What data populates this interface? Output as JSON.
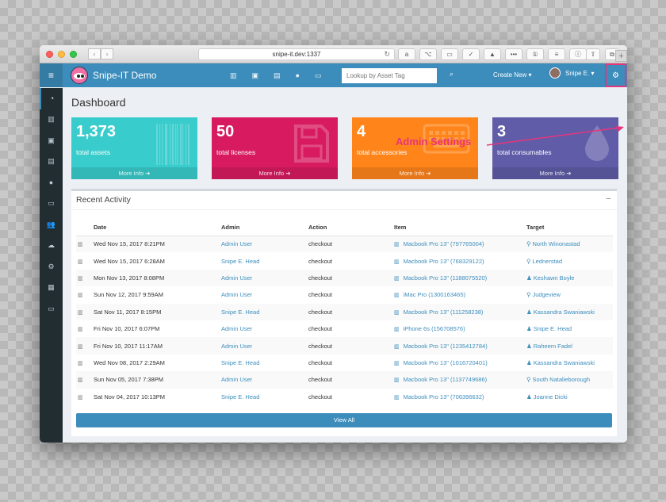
{
  "browser": {
    "url": "snipe-it.dev:1337",
    "nav_back": "‹",
    "nav_forward": "›",
    "reload_icon": "↻",
    "extensions": [
      "a",
      "⌥",
      "▭",
      "✓",
      "▲",
      "•••",
      "①",
      "≡",
      "ⓘ"
    ],
    "right_buttons": [
      "⇧",
      "⧉"
    ],
    "new_tab": "+"
  },
  "header": {
    "menu_icon": "≡",
    "brand": "Snipe-IT Demo",
    "nav_icons": [
      "▥",
      "▣",
      "▤",
      "●",
      "▭"
    ],
    "search_placeholder": "Lookup by Asset Tag",
    "search_icon": "⌕",
    "create_new": "Create New ▾",
    "user_name": "Snipe E. ▾",
    "admin_icon": "⚙"
  },
  "sidebar": {
    "items": [
      "◔",
      "▥",
      "▣",
      "▤",
      "●",
      "▭",
      "👥",
      "☁",
      "⚙",
      "▦",
      "▭"
    ]
  },
  "page": {
    "title": "Dashboard",
    "annotation": "Admin Settings"
  },
  "stats": [
    {
      "value": "1,373",
      "label": "total assets",
      "more": "More Info ➔",
      "color": "#39cccc",
      "icon": "barcode-icon"
    },
    {
      "value": "50",
      "label": "total licenses",
      "more": "More Info ➔",
      "color": "#d81b60",
      "icon": "floppy-icon"
    },
    {
      "value": "4",
      "label": "total accessories",
      "more": "More Info ➔",
      "color": "#ff851b",
      "icon": "keyboard-icon"
    },
    {
      "value": "3",
      "label": "total consumables",
      "more": "More Info ➔",
      "color": "#605ca8",
      "icon": "drop-icon"
    }
  ],
  "activity": {
    "title": "Recent Activity",
    "collapse": "–",
    "columns": [
      "Date",
      "Admin",
      "Action",
      "Item",
      "Target"
    ],
    "rows": [
      {
        "date": "Wed Nov 15, 2017 8:21PM",
        "admin": "Admin User",
        "action": "checkout",
        "item": "Macbook Pro 13\" (797765004)",
        "target": "North Winonastad",
        "target_type": "location"
      },
      {
        "date": "Wed Nov 15, 2017 6:28AM",
        "admin": "Snipe E. Head",
        "action": "checkout",
        "item": "Macbook Pro 13\" (768329122)",
        "target": "Lednerstad",
        "target_type": "location"
      },
      {
        "date": "Mon Nov 13, 2017 8:08PM",
        "admin": "Admin User",
        "action": "checkout",
        "item": "Macbook Pro 13\" (1188075520)",
        "target": "Keshawn Boyle",
        "target_type": "user"
      },
      {
        "date": "Sun Nov 12, 2017 9:59AM",
        "admin": "Admin User",
        "action": "checkout",
        "item": "iMac Pro (1300163465)",
        "target": "Judgeview",
        "target_type": "location"
      },
      {
        "date": "Sat Nov 11, 2017 8:15PM",
        "admin": "Snipe E. Head",
        "action": "checkout",
        "item": "Macbook Pro 13\" (111258238)",
        "target": "Kassandra Swaniawski",
        "target_type": "user"
      },
      {
        "date": "Fri Nov 10, 2017 6:07PM",
        "admin": "Admin User",
        "action": "checkout",
        "item": "iPhone 6s (156708576)",
        "target": "Snipe E. Head",
        "target_type": "user"
      },
      {
        "date": "Fri Nov 10, 2017 11:17AM",
        "admin": "Admin User",
        "action": "checkout",
        "item": "Macbook Pro 13\" (1235412784)",
        "target": "Raheem Fadel",
        "target_type": "user"
      },
      {
        "date": "Wed Nov 08, 2017 2:29AM",
        "admin": "Snipe E. Head",
        "action": "checkout",
        "item": "Macbook Pro 13\" (1016720401)",
        "target": "Kassandra Swaniawski",
        "target_type": "user"
      },
      {
        "date": "Sun Nov 05, 2017 7:38PM",
        "admin": "Admin User",
        "action": "checkout",
        "item": "Macbook Pro 13\" (1137749686)",
        "target": "South Natalieborough",
        "target_type": "location"
      },
      {
        "date": "Sat Nov 04, 2017 10:13PM",
        "admin": "Snipe E. Head",
        "action": "checkout",
        "item": "Macbook Pro 13\" (706396632)",
        "target": "Joanne Dicki",
        "target_type": "user"
      }
    ],
    "view_all": "View All"
  },
  "colors": {
    "header": "#3c8dbc",
    "sidebar": "#222d32",
    "annotation": "#e8357a"
  }
}
